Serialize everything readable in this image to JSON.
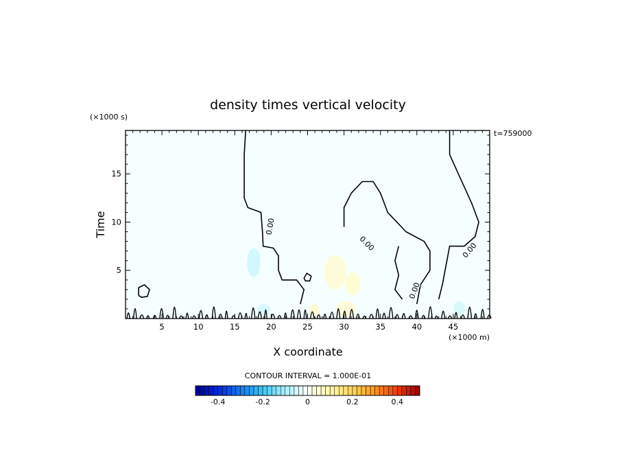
{
  "chart_data": {
    "type": "contour",
    "title": "density times vertical velocity",
    "xlabel": "X coordinate",
    "ylabel": "Time",
    "x_units": "(×1000 m)",
    "y_units": "(×1000 s)",
    "time_stamp": "t=759000",
    "xlim": [
      0,
      50
    ],
    "ylim": [
      0,
      19.5
    ],
    "xticks": [
      5,
      10,
      15,
      20,
      25,
      30,
      35,
      40,
      45
    ],
    "yticks": [
      5,
      10,
      15
    ],
    "contour_interval_label": "CONTOUR INTERVAL = 1.000E-01",
    "zero_contour_label": "0.00",
    "zero_contours": [
      {
        "name": "left-zero-line",
        "points": [
          [
            16.5,
            19.5
          ],
          [
            16.3,
            17
          ],
          [
            16.3,
            12.5
          ],
          [
            16.8,
            11.5
          ],
          [
            18.6,
            11.0
          ],
          [
            18.7,
            10.0
          ],
          [
            18.8,
            9.0
          ],
          [
            18.9,
            7.5
          ],
          [
            20.3,
            7.3
          ],
          [
            21.0,
            6.5
          ],
          [
            21.0,
            5.0
          ],
          [
            21.5,
            4.0
          ],
          [
            23.5,
            4.0
          ],
          [
            24.5,
            3.0
          ],
          [
            24.0,
            1.5
          ]
        ]
      },
      {
        "name": "middle-zero-line",
        "points": [
          [
            30.0,
            9.5
          ],
          [
            30.0,
            11.5
          ],
          [
            31.0,
            13.0
          ],
          [
            32.5,
            14.2
          ],
          [
            34.0,
            14.2
          ],
          [
            35.0,
            13.0
          ],
          [
            36.0,
            11.0
          ],
          [
            38.5,
            9.0
          ],
          [
            41.0,
            8.0
          ],
          [
            41.8,
            7.0
          ],
          [
            41.8,
            5.0
          ],
          [
            40.5,
            3.5
          ],
          [
            40.0,
            1.5
          ]
        ]
      },
      {
        "name": "right-zero-line",
        "points": [
          [
            44.5,
            19.5
          ],
          [
            44.5,
            17.0
          ],
          [
            46.0,
            14.5
          ],
          [
            47.5,
            12.0
          ],
          [
            48.5,
            10.0
          ],
          [
            48.0,
            8.5
          ],
          [
            46.5,
            7.5
          ],
          [
            44.5,
            7.5
          ],
          [
            44.0,
            5.5
          ],
          [
            43.5,
            3.5
          ],
          [
            43.0,
            2.0
          ]
        ]
      },
      {
        "name": "center-notch-line",
        "points": [
          [
            37.5,
            7.5
          ],
          [
            37.0,
            6.0
          ],
          [
            37.5,
            4.5
          ],
          [
            37.0,
            3.0
          ],
          [
            38.0,
            2.0
          ]
        ]
      },
      {
        "name": "small-loop-x2",
        "points": [
          [
            1.8,
            2.4
          ],
          [
            1.8,
            3.2
          ],
          [
            2.6,
            3.5
          ],
          [
            3.3,
            3.0
          ],
          [
            3.0,
            2.3
          ],
          [
            2.2,
            2.2
          ],
          [
            1.8,
            2.4
          ]
        ]
      },
      {
        "name": "small-loop-x25",
        "points": [
          [
            24.5,
            4.2
          ],
          [
            24.9,
            4.7
          ],
          [
            25.5,
            4.4
          ],
          [
            25.3,
            3.9
          ],
          [
            24.7,
            3.9
          ],
          [
            24.5,
            4.2
          ]
        ]
      }
    ],
    "colorbar": {
      "ticks": [
        "-0.4",
        "-0.2",
        "0",
        "0.2",
        "0.4"
      ],
      "min": -0.5,
      "max": 0.5,
      "n_bins": 50
    },
    "anomalies": [
      {
        "x": 17.6,
        "y": 5.8,
        "rx": 0.9,
        "ry": 1.5,
        "value": -0.06
      },
      {
        "x": 28.8,
        "y": 4.8,
        "rx": 1.5,
        "ry": 1.8,
        "value": 0.05
      },
      {
        "x": 31.2,
        "y": 3.6,
        "rx": 1.0,
        "ry": 1.2,
        "value": 0.06
      },
      {
        "x": 30.3,
        "y": 1.0,
        "rx": 1.4,
        "ry": 0.8,
        "value": 0.05
      },
      {
        "x": 19.0,
        "y": 0.9,
        "rx": 0.9,
        "ry": 0.6,
        "value": -0.05
      },
      {
        "x": 45.8,
        "y": 1.1,
        "rx": 0.8,
        "ry": 0.7,
        "value": -0.05
      },
      {
        "x": 25.9,
        "y": 0.9,
        "rx": 0.7,
        "ry": 0.6,
        "value": 0.05
      }
    ],
    "grid": false,
    "legend": "colorbar-bottom"
  }
}
